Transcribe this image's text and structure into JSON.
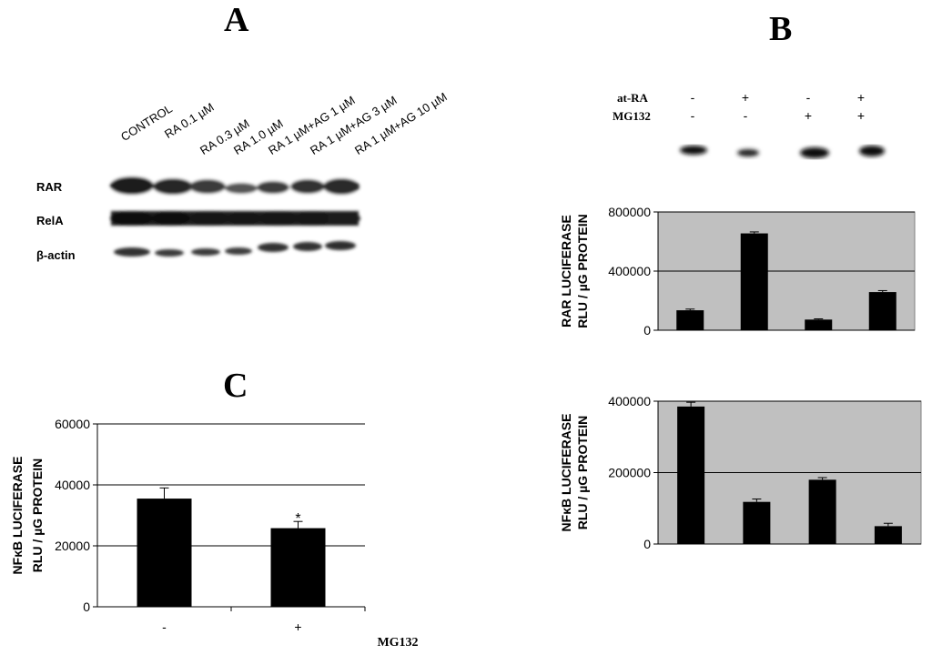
{
  "panels": {
    "a": "A",
    "b": "B",
    "c": "C"
  },
  "blot_a": {
    "lanes": [
      "CONTROL",
      "RA 0.1 µM",
      "RA 0.3 µM",
      "RA 1.0 µM",
      "RA 1 µM+AG 1 µM",
      "RA 1 µM+AG 3 µM",
      "RA 1 µM+AG 10 µM"
    ],
    "rows": [
      "RAR",
      "RelA",
      "β-actin"
    ]
  },
  "blot_b": {
    "treatments": [
      {
        "name": "at-RA",
        "signs": [
          "-",
          "+",
          "-",
          "+"
        ]
      },
      {
        "name": "MG132",
        "signs": [
          "-",
          "-",
          "+",
          "+"
        ]
      }
    ]
  },
  "chart_data": [
    {
      "id": "rar",
      "type": "bar",
      "ylabel_line1": "RAR  LUCIFERASE",
      "ylabel_line2": "RLU / µG PROTEIN",
      "ylim": [
        0,
        800000
      ],
      "yticks": [
        "0",
        "400000",
        "800000"
      ],
      "yticks_values": [
        0,
        400000,
        800000
      ],
      "categories": [
        "-/-",
        "+/-",
        "-/+",
        "+/+"
      ],
      "values": [
        135000,
        655000,
        72000,
        258000
      ],
      "errors": [
        8000,
        10000,
        5000,
        10000
      ],
      "background": "#c0c0c0",
      "grid": true
    },
    {
      "id": "nfkb_b",
      "type": "bar",
      "ylabel_line1": "NFκB LUCIFERASE",
      "ylabel_line2": "RLU / µG PROTEIN",
      "ylim": [
        0,
        400000
      ],
      "yticks": [
        "0",
        "200000",
        "400000"
      ],
      "yticks_values": [
        0,
        200000,
        400000
      ],
      "categories": [
        "-/-",
        "+/-",
        "-/+",
        "+/+"
      ],
      "values": [
        385000,
        118000,
        180000,
        50000
      ],
      "errors": [
        12000,
        8000,
        6000,
        8000
      ],
      "background": "#c0c0c0",
      "grid": true
    },
    {
      "id": "nfkb_c",
      "type": "bar",
      "ylabel_line1": "NFκB LUCIFERASE",
      "ylabel_line2": "RLU / µG PROTEIN",
      "ylim": [
        0,
        60000
      ],
      "yticks": [
        "0",
        "20000",
        "40000",
        "60000"
      ],
      "yticks_values": [
        0,
        20000,
        40000,
        60000
      ],
      "categories": [
        "-",
        "+"
      ],
      "xlabel": "MG132",
      "values": [
        35500,
        25800
      ],
      "errors": [
        3500,
        2200
      ],
      "annotations": [
        "",
        "*"
      ],
      "background": "#ffffff",
      "grid": true
    }
  ]
}
